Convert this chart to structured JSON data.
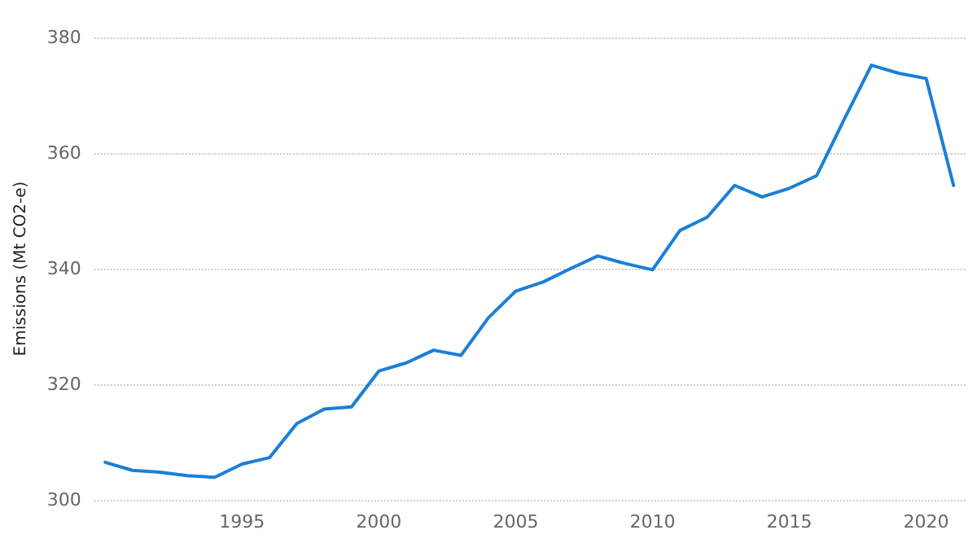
{
  "chart_data": {
    "type": "line",
    "ylabel": "Emissions (Mt CO2-e)",
    "x": [
      1990,
      1991,
      1992,
      1993,
      1994,
      1995,
      1996,
      1997,
      1998,
      1999,
      2000,
      2001,
      2002,
      2003,
      2004,
      2005,
      2006,
      2007,
      2008,
      2009,
      2010,
      2011,
      2012,
      2013,
      2014,
      2015,
      2016,
      2017,
      2018,
      2019,
      2020,
      2021
    ],
    "series": [
      {
        "color": "#1a7fd6",
        "values": [
          306.5,
          305.1,
          304.8,
          304.2,
          303.9,
          306.2,
          307.3,
          313.2,
          315.7,
          316.1,
          322.3,
          323.7,
          325.9,
          325.0,
          331.5,
          336.1,
          337.7,
          340.0,
          342.2,
          340.9,
          339.8,
          346.6,
          348.9,
          354.4,
          352.4,
          353.9,
          356.1,
          365.8,
          375.2,
          373.8,
          372.9,
          354.4
        ]
      }
    ],
    "xlim": [
      1989.6,
      2021.5
    ],
    "xticks": [
      1995,
      2000,
      2005,
      2010,
      2015,
      2020
    ],
    "ylim": [
      300,
      380
    ],
    "yticks": [
      300,
      320,
      340,
      360,
      380
    ],
    "grid": "y",
    "marker": "none",
    "line_style": "solid"
  }
}
